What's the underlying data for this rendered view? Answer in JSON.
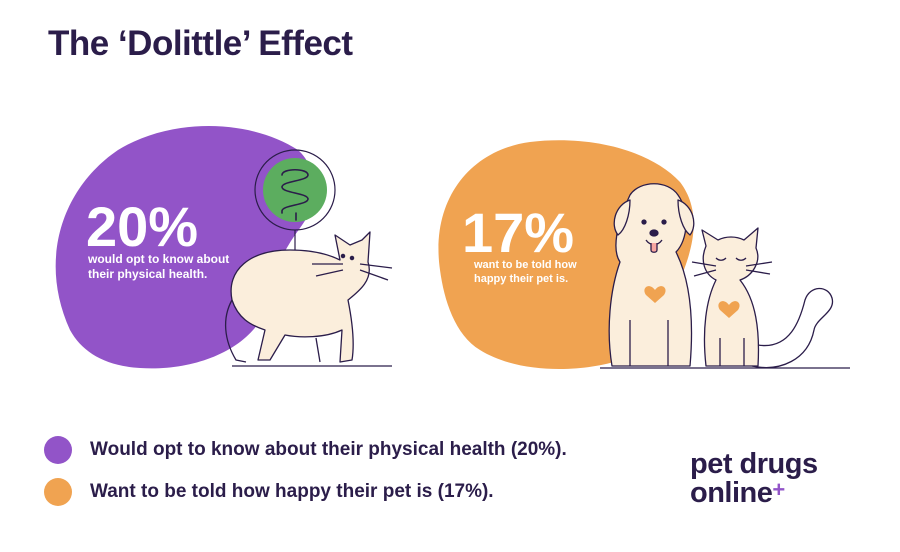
{
  "page": {
    "title": "The ‘Dolittle’ Effect"
  },
  "colors": {
    "purple": "#9254c8",
    "orange": "#f0a351",
    "green": "#5cad5f",
    "navy": "#2b1d4a",
    "cream": "#fbeedc",
    "heart": "#f0a351"
  },
  "chart_data": {
    "type": "infographic",
    "title": "The ‘Dolittle’ Effect",
    "unit": "%",
    "items": [
      {
        "value": 20,
        "label": "20%",
        "description": "would opt to know about their physical health.",
        "color": "#9254c8",
        "icon": "intestine-icon"
      },
      {
        "value": 17,
        "label": "17%",
        "description": "want to be told how happy their pet is.",
        "color": "#f0a351",
        "icon": "heart-icon"
      }
    ]
  },
  "stats": [
    {
      "value": "20%",
      "line1": "would opt to know about",
      "line2": "their physical health."
    },
    {
      "value": "17%",
      "line1": "want to be told how",
      "line2": "happy their pet is."
    }
  ],
  "legend": [
    {
      "label": "Would opt to know about their physical health (20%).",
      "color": "#9254c8"
    },
    {
      "label": "Want to be told how happy their pet is (17%).",
      "color": "#f0a351"
    }
  ],
  "logo": {
    "line1": "pet drugs",
    "line2": "online",
    "plus": "+"
  }
}
